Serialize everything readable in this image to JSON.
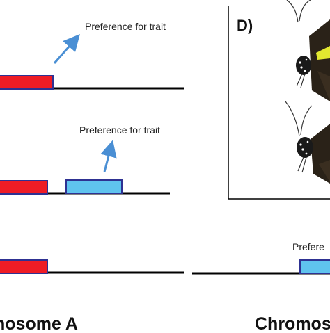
{
  "rows": [
    {
      "annotation": "Preference for trait",
      "blocks": [
        "red"
      ]
    },
    {
      "annotation": "Preference for trait",
      "blocks": [
        "red",
        "blue"
      ]
    },
    {
      "annotation": "",
      "blocks": [
        "red"
      ]
    }
  ],
  "chromosome_a_label": "nosome A",
  "panel_d": {
    "label": "D)",
    "caption": "Prefere"
  },
  "chromosome_b": {
    "label": "Chromos",
    "blocks": [
      "blue"
    ]
  },
  "colors": {
    "red_block": "#ee1c25",
    "blue_block": "#5fc3ee",
    "block_border": "#2e3192",
    "arrow": "#4a8fd4",
    "line": "#000000",
    "butterfly_wing": "#2a2218",
    "butterfly_accent": "#e2e830"
  },
  "icons": [
    "butterfly-icon",
    "butterfly-icon"
  ]
}
